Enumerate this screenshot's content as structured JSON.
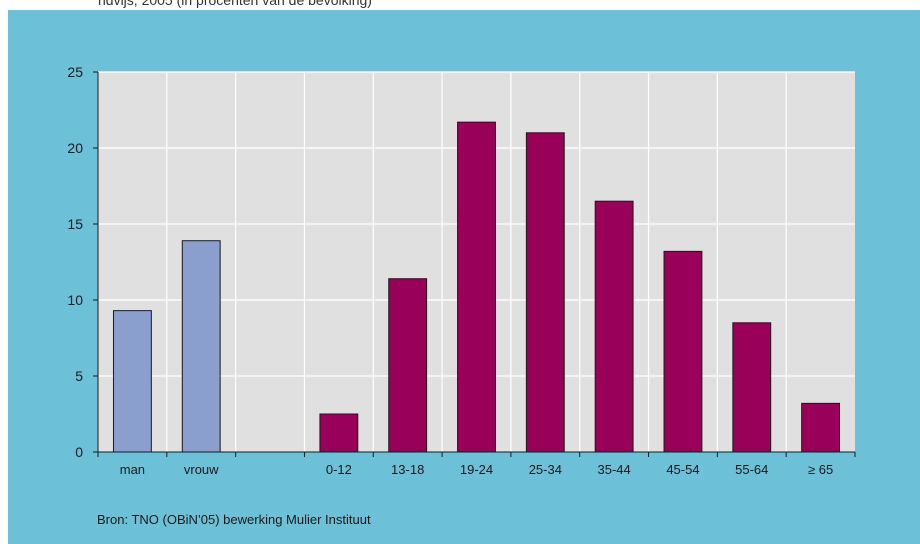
{
  "header": {
    "partial_text": "ndvijs, 2005 (in procenten van de bevolking)"
  },
  "chart_data": {
    "type": "bar",
    "categories": [
      "man",
      "vrouw",
      "",
      "0-12",
      "13-18",
      "19-24",
      "25-34",
      "35-44",
      "45-54",
      "55-64",
      "≥ 65"
    ],
    "values": [
      9.3,
      13.9,
      null,
      2.5,
      11.4,
      21.7,
      21.0,
      16.5,
      13.2,
      8.5,
      3.2
    ],
    "yticks": [
      "0",
      "5",
      "10",
      "15",
      "20",
      "25"
    ],
    "ylim": [
      0,
      25
    ],
    "grid": true,
    "colors": {
      "gender": "#8b9fcf",
      "age": "#990059",
      "plot_background": "#e0e0e0",
      "panel": "#6cc0d8"
    },
    "bar_groups": [
      "gender",
      "gender",
      "none",
      "age",
      "age",
      "age",
      "age",
      "age",
      "age",
      "age",
      "age"
    ]
  },
  "source": "Bron: TNO (OBiN’05) bewerking Mulier Instituut"
}
